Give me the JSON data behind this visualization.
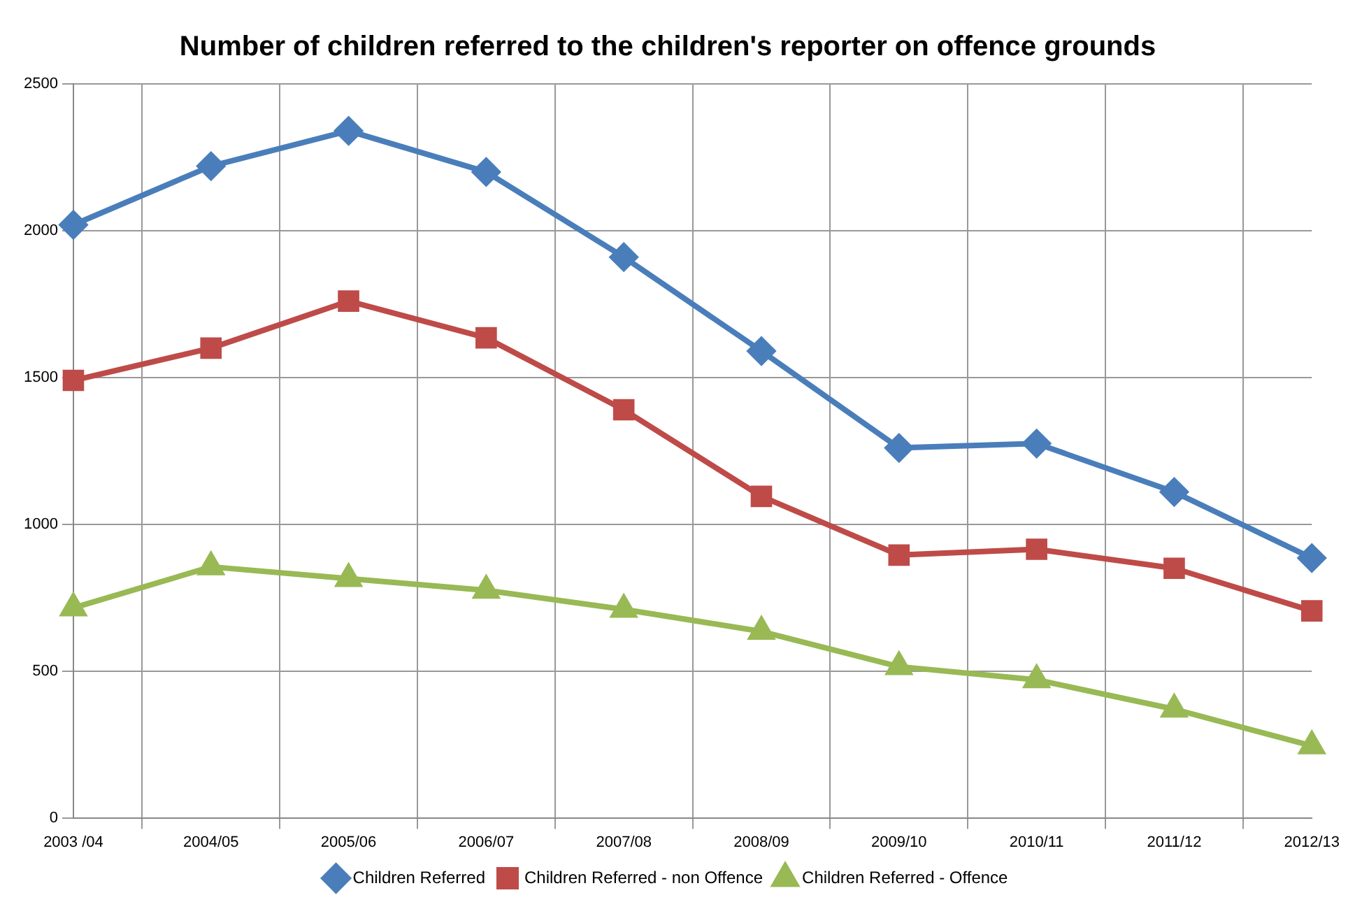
{
  "chart_data": {
    "type": "line",
    "title": "Number of children referred to the children's reporter on offence grounds",
    "categories": [
      "2003 /04",
      "2004/05",
      "2005/06",
      "2006/07",
      "2007/08",
      "2008/09",
      "2009/10",
      "2010/11",
      "2011/12",
      "2012/13"
    ],
    "series": [
      {
        "name": "Children Referred",
        "color": "#4a7ebb",
        "marker": "diamond",
        "values": [
          2020,
          2220,
          2340,
          2200,
          1910,
          1590,
          1260,
          1275,
          1110,
          885
        ]
      },
      {
        "name": "Children Referred - non Offence",
        "color": "#be4b48",
        "marker": "square",
        "values": [
          1490,
          1600,
          1760,
          1635,
          1390,
          1095,
          895,
          915,
          850,
          705
        ]
      },
      {
        "name": "Children Referred - Offence",
        "color": "#98b954",
        "marker": "triangle",
        "values": [
          715,
          855,
          815,
          775,
          710,
          635,
          515,
          470,
          370,
          245
        ]
      }
    ],
    "ylim": [
      0,
      2500
    ],
    "yticks": [
      0,
      500,
      1000,
      1500,
      2000,
      2500
    ],
    "grid": true,
    "legend": "bottom",
    "line_style": "solid"
  }
}
